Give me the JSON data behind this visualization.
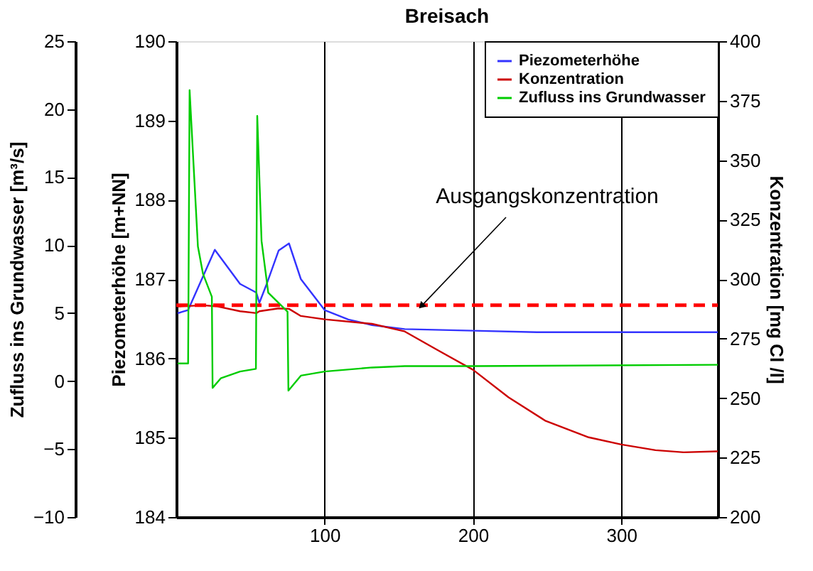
{
  "chart_data": {
    "type": "line",
    "title": "Breisach",
    "ylabel": "Piezometerhöhe [m+NN]",
    "y2label": "Konzentration [mg Cl /l]",
    "y3label": "Zufluss ins Grundwasser [m³/s]",
    "xlim": [
      0,
      365
    ],
    "xticks": [
      100,
      200,
      300
    ],
    "ylim": [
      184,
      190
    ],
    "yticks": [
      184,
      185,
      186,
      187,
      188,
      189,
      190
    ],
    "y2lim": [
      200,
      400
    ],
    "y2ticks": [
      200,
      225,
      250,
      275,
      300,
      325,
      350,
      375,
      400
    ],
    "y3lim": [
      -10,
      25
    ],
    "y3ticks": [
      -10,
      -5,
      0,
      5,
      10,
      15,
      20,
      25
    ],
    "grid": "x",
    "legend": "top right",
    "marker": "none",
    "line_style": "solid",
    "series": [
      {
        "name": "Piezometerhöhe",
        "color": "#3333ff",
        "axis": "y",
        "x": [
          1,
          8,
          26,
          43,
          54,
          56,
          61,
          69,
          76,
          84,
          100,
          116,
          132,
          154,
          200,
          243,
          365
        ],
        "values": [
          186.57,
          186.61,
          187.37,
          186.94,
          186.83,
          186.7,
          186.94,
          187.36,
          187.45,
          187.0,
          186.61,
          186.49,
          186.42,
          186.37,
          186.35,
          186.33,
          186.33
        ]
      },
      {
        "name": "Konzentration",
        "color": "#cc0000",
        "axis": "y2",
        "x": [
          1,
          18,
          27,
          43,
          54,
          56,
          69,
          76,
          84,
          100,
          132,
          154,
          176,
          200,
          224,
          249,
          278,
          300,
          323,
          342,
          365
        ],
        "values": [
          288.5,
          289,
          288.6,
          286.5,
          285.7,
          286.5,
          287.7,
          287.5,
          284.5,
          283.1,
          281.2,
          278,
          270.2,
          261.9,
          250.3,
          240.4,
          233.5,
          230.5,
          228.1,
          227.2,
          227.6
        ]
      },
      {
        "name": "Zufluss ins Grundwasser",
        "color": "#00cc00",
        "axis": "y3",
        "x": [
          1,
          8,
          9,
          14.6,
          18,
          24,
          24.5,
          30,
          43,
          53.7,
          54.6,
          57.5,
          62,
          75,
          75.6,
          84,
          100,
          132,
          154,
          200,
          365
        ],
        "values": [
          1.3,
          1.3,
          21.4,
          9.9,
          7.9,
          6.2,
          -0.5,
          0.2,
          0.7,
          0.9,
          19.5,
          10.3,
          6.5,
          5.1,
          -0.7,
          0.4,
          0.7,
          1.0,
          1.1,
          1.1,
          1.2
        ]
      }
    ],
    "ref_lines": [
      {
        "axis": "y2",
        "value": 289,
        "color": "#ff0000",
        "line_style": "dashed",
        "label": "Ausgangskonzentration"
      }
    ]
  }
}
